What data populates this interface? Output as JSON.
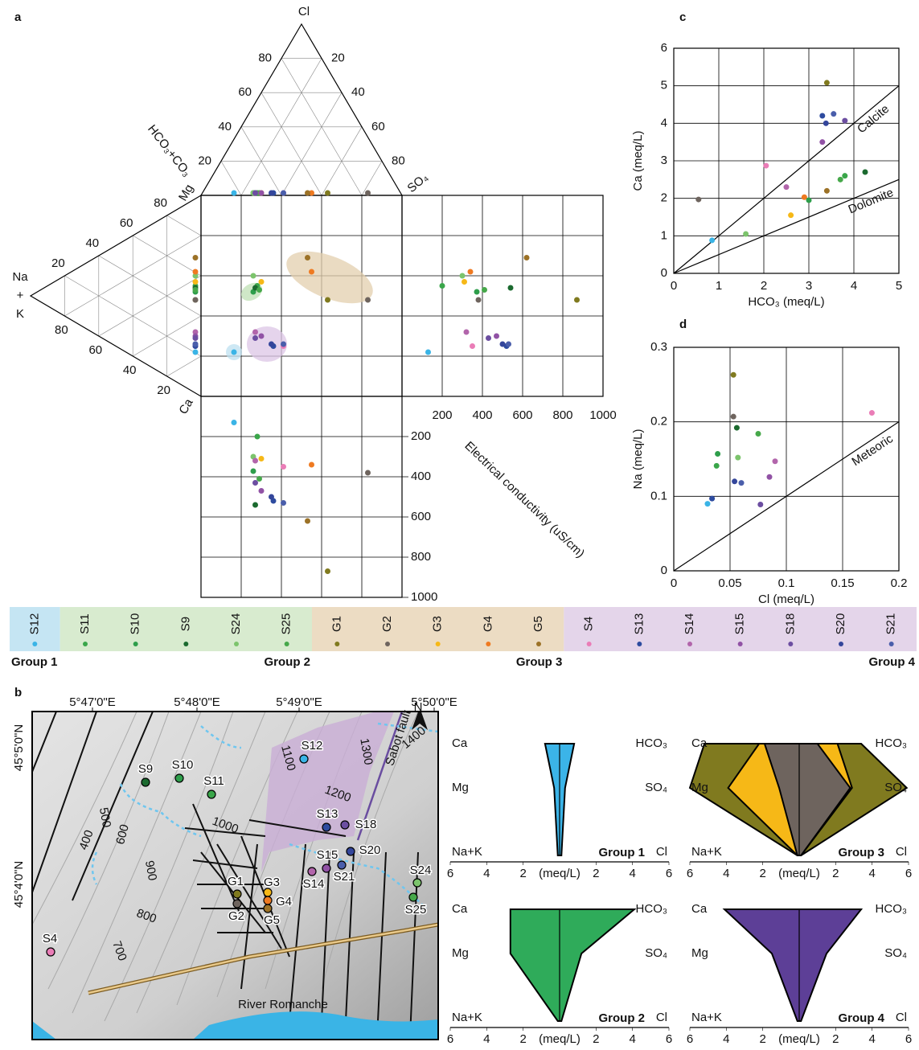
{
  "panel_labels": [
    "a",
    "b",
    "c",
    "d"
  ],
  "chart_data": [
    {
      "type": "piper",
      "top_label": "Cl",
      "right_label": "SO₄",
      "left_label": "HCO₃+CO₃",
      "mg_label": "Mg",
      "ca_label": "Ca",
      "nak_label": [
        "Na",
        "+",
        "K"
      ],
      "xlim": [
        0,
        100
      ],
      "ylim": [
        0,
        100
      ],
      "top_left_ticks": [
        80,
        60,
        40,
        20
      ],
      "top_right_ticks": [
        20,
        40,
        60,
        80
      ],
      "left_upper_ticks": [
        20,
        40,
        60,
        80
      ],
      "left_lower_ticks": [
        80,
        60,
        40,
        20
      ],
      "eclim": [
        0,
        1000
      ],
      "ecticks": [
        200,
        400,
        600,
        800,
        1000
      ],
      "ec_label": "Electrical conductivity (uS/cm)",
      "x": [
        16.4,
        28,
        26,
        27,
        26,
        29,
        63,
        83,
        30,
        55,
        53,
        41,
        36,
        27,
        30,
        27,
        35,
        41
      ],
      "y": [
        22,
        55,
        52,
        54,
        60,
        53,
        48,
        48,
        57,
        62,
        69,
        25,
        25,
        32,
        30,
        29,
        26,
        26
      ],
      "ec": [
        130,
        200,
        372,
        540,
        300,
        410,
        870,
        380,
        310,
        340,
        620,
        350,
        520,
        320,
        470,
        430,
        500,
        530
      ],
      "colors": [
        "#3ab4e6",
        "#3aa64a",
        "#2e9e4b",
        "#1b6a2f",
        "#7cc46c",
        "#46a84a",
        "#807a1f",
        "#6e645e",
        "#f6b817",
        "#ef7a21",
        "#9c7227",
        "#ea7db7",
        "#2d4b9f",
        "#b265ab",
        "#9152a5",
        "#6c4ea1",
        "#34469b",
        "#4a5eab"
      ]
    },
    {
      "type": "scatter",
      "xlabel": "HCO₃ (meq/L)",
      "ylabel": "Ca (meq/L)",
      "xlim": [
        0,
        5
      ],
      "ylim": [
        0,
        6
      ],
      "xticks": [
        0,
        1,
        2,
        3,
        4,
        5
      ],
      "yticks": [
        0,
        1,
        2,
        3,
        4,
        5,
        6
      ],
      "grid": true,
      "lines": [
        {
          "label": "Calcite",
          "slope": 1
        },
        {
          "label": "Dolomite",
          "slope": 0.5
        }
      ],
      "x": [
        0.55,
        0.85,
        1.6,
        2.05,
        2.5,
        2.6,
        2.9,
        3.0,
        3.3,
        3.3,
        3.38,
        3.55,
        3.8,
        3.4,
        3.4,
        3.7,
        3.8,
        4.25
      ],
      "y": [
        1.97,
        0.88,
        1.05,
        2.87,
        2.3,
        1.55,
        2.03,
        1.95,
        3.5,
        4.2,
        4.0,
        4.25,
        4.07,
        5.08,
        2.2,
        2.5,
        2.6,
        2.7
      ],
      "colors": [
        "#6e645e",
        "#3ab4e6",
        "#7cc46c",
        "#ea7db7",
        "#b265ab",
        "#f6b817",
        "#ef7a21",
        "#2e9e4b",
        "#9152a5",
        "#2d4b9f",
        "#34469b",
        "#4a5eab",
        "#6c4ea1",
        "#807a1f",
        "#9c7227",
        "#46a84a",
        "#3aa64a",
        "#1b6a2f"
      ]
    },
    {
      "type": "scatter",
      "xlabel": "Cl (meq/L)",
      "ylabel": "Na (meq/L)",
      "xlim": [
        0,
        0.2
      ],
      "ylim": [
        0,
        0.3
      ],
      "xticks": [
        0,
        0.05,
        0.1,
        0.15,
        0.2
      ],
      "yticks": [
        0,
        0.1,
        0.2,
        0.3
      ],
      "grid": true,
      "lines": [
        {
          "label": "Meteoric",
          "slope": 1
        }
      ],
      "x": [
        0.03,
        0.034,
        0.038,
        0.039,
        0.053,
        0.053,
        0.056,
        0.054,
        0.06,
        0.057,
        0.075,
        0.077,
        0.085,
        0.09,
        0.176
      ],
      "y": [
        0.09,
        0.097,
        0.141,
        0.157,
        0.263,
        0.207,
        0.192,
        0.12,
        0.118,
        0.152,
        0.184,
        0.089,
        0.126,
        0.147,
        0.212
      ],
      "colors": [
        "#3ab4e6",
        "#2d4b9f",
        "#3aa64a",
        "#2e9e4b",
        "#807a1f",
        "#6e645e",
        "#1b6a2f",
        "#34469b",
        "#4a5eab",
        "#7cc46c",
        "#46a84a",
        "#6c4ea1",
        "#9152a5",
        "#b265ab",
        "#ea7db7"
      ]
    },
    {
      "type": "stiff",
      "cation_labels": [
        "Ca",
        "Mg",
        "Na+K"
      ],
      "anion_labels": [
        "HCO₃",
        "SO₄",
        "Cl"
      ],
      "xlim": [
        -6,
        6
      ],
      "xticks": [
        {
          "value": -6,
          "label": "6"
        },
        {
          "value": -4,
          "label": "4"
        },
        {
          "value": -2,
          "label": "2"
        },
        2,
        4,
        6
      ],
      "xlabel": "(meq/L)",
      "groups": [
        {
          "title": "Group 1",
          "polygons": [
            {
              "color": "#3bb4e8",
              "cations": [
                0.8,
                0.3,
                0.1
              ],
              "anions": [
                0.8,
                0.3,
                0.1
              ]
            }
          ]
        },
        {
          "title": "Group 2",
          "polygons": [
            {
              "color": "#2fab5a",
              "cations": [
                2.7,
                2.7,
                0.1
              ],
              "anions": [
                4.1,
                1.2,
                0.1
              ]
            }
          ]
        },
        {
          "title": "Group 3",
          "polygons": [
            {
              "color": "#807a1f",
              "cations": [
                5.2,
                6.0,
                0.1
              ],
              "anions": [
                3.4,
                5.9,
                0.1
              ]
            },
            {
              "color": "#f6b817",
              "cations": [
                2.2,
                3.9,
                0.1
              ],
              "anions": [
                2.1,
                2.9,
                0.1
              ]
            },
            {
              "color": "#6e645e",
              "cations": [
                1.9,
                1.1,
                0.1
              ],
              "anions": [
                1.0,
                2.8,
                0.1
              ]
            }
          ]
        },
        {
          "title": "Group 4",
          "polygons": [
            {
              "color": "#5d3f97",
              "cations": [
                4.1,
                1.5,
                0.1
              ],
              "anions": [
                3.4,
                1.5,
                0.1
              ]
            }
          ]
        }
      ]
    }
  ],
  "legend": {
    "groups": [
      {
        "label": "Group 1",
        "color": "#c5e5f3",
        "samples": [
          {
            "name": "S12",
            "color": "#3ab4e6"
          }
        ]
      },
      {
        "label": "Group 2",
        "color": "#d8ebcf",
        "samples": [
          {
            "name": "S11",
            "color": "#3aa64a"
          },
          {
            "name": "S10",
            "color": "#2e9e4b"
          },
          {
            "name": "S9",
            "color": "#1b6a2f"
          },
          {
            "name": "S24",
            "color": "#7cc46c"
          },
          {
            "name": "S25",
            "color": "#46a84a"
          }
        ]
      },
      {
        "label": "Group 3",
        "color": "#ecdcc3",
        "samples": [
          {
            "name": "G1",
            "color": "#807a1f"
          },
          {
            "name": "G2",
            "color": "#6e645e"
          },
          {
            "name": "G3",
            "color": "#f6b817"
          },
          {
            "name": "G4",
            "color": "#ef7a21"
          },
          {
            "name": "G5",
            "color": "#9c7227"
          }
        ]
      },
      {
        "label": "Group 4",
        "color": "#e4d5ea",
        "samples": [
          {
            "name": "S4",
            "color": "#ea7db7"
          },
          {
            "name": "S13",
            "color": "#2d4b9f"
          },
          {
            "name": "S14",
            "color": "#b265ab"
          },
          {
            "name": "S15",
            "color": "#9152a5"
          },
          {
            "name": "S18",
            "color": "#6c4ea1"
          },
          {
            "name": "S20",
            "color": "#34469b"
          },
          {
            "name": "S21",
            "color": "#4a5eab"
          }
        ]
      }
    ]
  },
  "map": {
    "longitudes": [
      "5°47'0\"E",
      "5°48'0\"E",
      "5°49'0\"E",
      "5°50'0\"E"
    ],
    "latitudes": [
      "45°5'0\"N",
      "45°4'0\"N"
    ],
    "contours": [
      "400",
      "500",
      "600",
      "700",
      "800",
      "900",
      "1000",
      "1100",
      "1200",
      "1300",
      "1400"
    ],
    "fault": "Sabot fault",
    "river": "River Romanche",
    "north": "N"
  }
}
